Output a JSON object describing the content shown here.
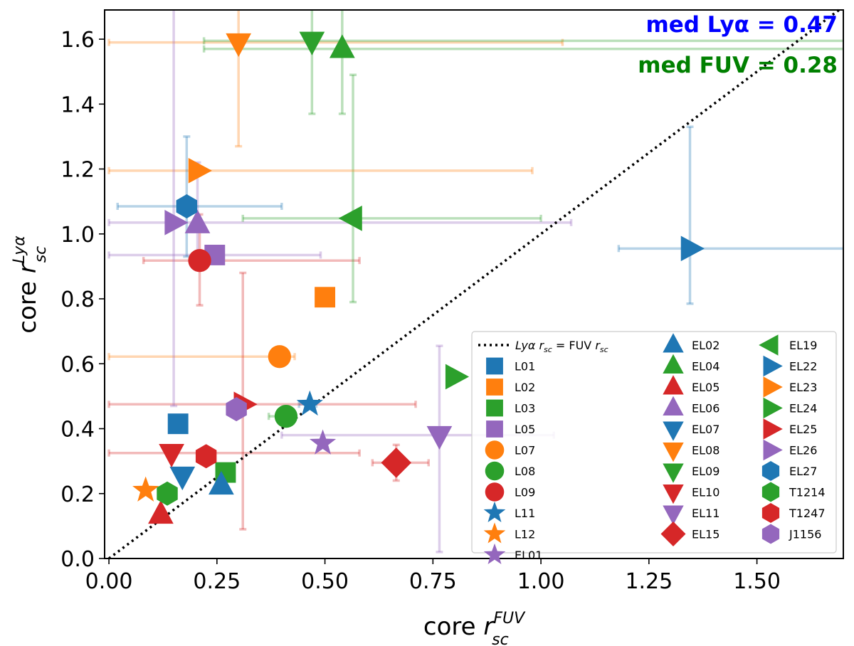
{
  "chart_data": {
    "type": "scatter",
    "title": "",
    "xlabel": {
      "base": "core ",
      "symbol": "r",
      "sub": "sc",
      "sup": "FUV"
    },
    "ylabel": {
      "base": "core ",
      "symbol": "r",
      "sub": "sc",
      "sup": "Lyα"
    },
    "xlim": [
      -0.01,
      1.7
    ],
    "ylim": [
      0.0,
      1.69
    ],
    "xticks": [
      "0.00",
      "0.25",
      "0.50",
      "0.75",
      "1.00",
      "1.25",
      "1.50"
    ],
    "xtick_values": [
      0.0,
      0.25,
      0.5,
      0.75,
      1.0,
      1.25,
      1.5
    ],
    "yticks": [
      "0.0",
      "0.2",
      "0.4",
      "0.6",
      "0.8",
      "1.0",
      "1.2",
      "1.4",
      "1.6"
    ],
    "ytick_values": [
      0.0,
      0.2,
      0.4,
      0.6,
      0.8,
      1.0,
      1.2,
      1.4,
      1.6
    ],
    "annotations": [
      {
        "text": "med Lyα  = 0.47",
        "color": "#0000ff",
        "position": "top-right"
      },
      {
        "text": "med FUV = 0.28",
        "color": "#008000",
        "position": "top-right"
      }
    ],
    "reference_line": {
      "label_parts": [
        "Lyα",
        " r",
        "sc",
        " = FUV",
        " r",
        "sc"
      ],
      "slope": 1,
      "style": "dotted"
    },
    "legend_position": "lower-right",
    "series": [
      {
        "name": "L01",
        "marker": "square",
        "color": "#1f77b4",
        "x": 0.16,
        "y": 0.415,
        "xerr": [
          0,
          0
        ],
        "yerr": [
          0,
          0
        ]
      },
      {
        "name": "L02",
        "marker": "square",
        "color": "#ff7f0e",
        "x": 0.5,
        "y": 0.805,
        "xerr": [
          0,
          0
        ],
        "yerr": [
          0,
          0
        ]
      },
      {
        "name": "L03",
        "marker": "square",
        "color": "#2ca02c",
        "x": 0.27,
        "y": 0.265,
        "xerr": [
          0,
          0
        ],
        "yerr": [
          0,
          0
        ]
      },
      {
        "name": "L05",
        "marker": "square",
        "color": "#9467bd",
        "x": 0.245,
        "y": 0.935,
        "xerr": [
          0.0,
          0.49
        ],
        "yerr": [
          0,
          0
        ]
      },
      {
        "name": "L07",
        "marker": "circle",
        "color": "#ff7f0e",
        "x": 0.395,
        "y": 0.622,
        "xerr": [
          0.0,
          0.43
        ],
        "yerr": [
          0,
          0
        ]
      },
      {
        "name": "L08",
        "marker": "circle",
        "color": "#2ca02c",
        "x": 0.41,
        "y": 0.438,
        "xerr": [
          0.37,
          0.43
        ],
        "yerr": [
          0,
          0
        ]
      },
      {
        "name": "L09",
        "marker": "circle",
        "color": "#d62728",
        "x": 0.21,
        "y": 0.918,
        "xerr": [
          0.08,
          0.58
        ],
        "yerr": [
          0.78,
          1.06
        ]
      },
      {
        "name": "L11",
        "marker": "star",
        "color": "#1f77b4",
        "x": 0.465,
        "y": 0.475,
        "xerr": [
          0.44,
          0.48
        ],
        "yerr": [
          0,
          0
        ]
      },
      {
        "name": "L12",
        "marker": "star",
        "color": "#ff7f0e",
        "x": 0.085,
        "y": 0.21,
        "xerr": [
          0,
          0
        ],
        "yerr": [
          0,
          0
        ]
      },
      {
        "name": "EL01",
        "marker": "star",
        "color": "#9467bd",
        "x": 0.495,
        "y": 0.355,
        "xerr": [
          0,
          0
        ],
        "yerr": [
          0,
          0
        ]
      },
      {
        "name": "EL02",
        "marker": "triangle-up",
        "color": "#1f77b4",
        "x": 0.26,
        "y": 0.225,
        "xerr": [
          0,
          0
        ],
        "yerr": [
          0,
          0
        ]
      },
      {
        "name": "EL04",
        "marker": "triangle-up",
        "color": "#2ca02c",
        "x": 0.54,
        "y": 1.57,
        "xerr": [
          0.22,
          1.7
        ],
        "yerr": [
          1.37,
          1.69
        ]
      },
      {
        "name": "EL05",
        "marker": "triangle-up",
        "color": "#d62728",
        "x": 0.12,
        "y": 0.135,
        "xerr": [
          0,
          0
        ],
        "yerr": [
          0,
          0
        ]
      },
      {
        "name": "EL06",
        "marker": "triangle-up",
        "color": "#9467bd",
        "x": 0.205,
        "y": 1.03,
        "xerr": [
          0,
          0
        ],
        "yerr": [
          0.89,
          1.22
        ]
      },
      {
        "name": "EL07",
        "marker": "triangle-down",
        "color": "#1f77b4",
        "x": 0.17,
        "y": 0.255,
        "xerr": [
          0,
          0
        ],
        "yerr": [
          0,
          0
        ]
      },
      {
        "name": "EL08",
        "marker": "triangle-down",
        "color": "#ff7f0e",
        "x": 0.3,
        "y": 1.59,
        "xerr": [
          0.0,
          1.05
        ],
        "yerr": [
          1.27,
          1.69
        ]
      },
      {
        "name": "EL09",
        "marker": "triangle-down",
        "color": "#2ca02c",
        "x": 0.47,
        "y": 1.595,
        "xerr": [
          0.22,
          1.7
        ],
        "yerr": [
          1.37,
          1.69
        ]
      },
      {
        "name": "EL10",
        "marker": "triangle-down",
        "color": "#d62728",
        "x": 0.145,
        "y": 0.325,
        "xerr": [
          0.0,
          0.58
        ],
        "yerr": [
          0,
          0
        ]
      },
      {
        "name": "EL11",
        "marker": "triangle-down",
        "color": "#9467bd",
        "x": 0.765,
        "y": 0.38,
        "xerr": [
          0.4,
          1.03
        ],
        "yerr": [
          0.02,
          0.655
        ]
      },
      {
        "name": "EL15",
        "marker": "diamond",
        "color": "#d62728",
        "x": 0.665,
        "y": 0.295,
        "xerr": [
          0.61,
          0.74
        ],
        "yerr": [
          0.24,
          0.35
        ]
      },
      {
        "name": "EL19",
        "marker": "triangle-left",
        "color": "#2ca02c",
        "x": 0.565,
        "y": 1.048,
        "xerr": [
          0.31,
          1.0
        ],
        "yerr": [
          0.79,
          1.49
        ]
      },
      {
        "name": "EL22",
        "marker": "triangle-right",
        "color": "#1f77b4",
        "x": 1.345,
        "y": 0.955,
        "xerr": [
          1.18,
          1.7
        ],
        "yerr": [
          0.785,
          1.33
        ]
      },
      {
        "name": "EL23",
        "marker": "triangle-right",
        "color": "#ff7f0e",
        "x": 0.205,
        "y": 1.195,
        "xerr": [
          0.0,
          0.98
        ],
        "yerr": [
          0,
          0
        ]
      },
      {
        "name": "EL24",
        "marker": "triangle-right",
        "color": "#2ca02c",
        "x": 0.8,
        "y": 0.56,
        "xerr": [
          0,
          0
        ],
        "yerr": [
          0,
          0
        ]
      },
      {
        "name": "EL25",
        "marker": "triangle-right",
        "color": "#d62728",
        "x": 0.31,
        "y": 0.475,
        "xerr": [
          0.0,
          0.71
        ],
        "yerr": [
          0.09,
          0.88
        ]
      },
      {
        "name": "EL26",
        "marker": "triangle-right",
        "color": "#9467bd",
        "x": 0.15,
        "y": 1.035,
        "xerr": [
          0.0,
          1.07
        ],
        "yerr": [
          0.47,
          1.69
        ]
      },
      {
        "name": "EL27",
        "marker": "hexagon",
        "color": "#1f77b4",
        "x": 0.18,
        "y": 1.085,
        "xerr": [
          0.02,
          0.4
        ],
        "yerr": [
          0.93,
          1.3
        ]
      },
      {
        "name": "T1214",
        "marker": "hexagon",
        "color": "#2ca02c",
        "x": 0.135,
        "y": 0.2,
        "xerr": [
          0,
          0
        ],
        "yerr": [
          0,
          0
        ]
      },
      {
        "name": "T1247",
        "marker": "hexagon",
        "color": "#d62728",
        "x": 0.225,
        "y": 0.315,
        "xerr": [
          0,
          0
        ],
        "yerr": [
          0,
          0
        ]
      },
      {
        "name": "J1156",
        "marker": "hexagon",
        "color": "#9467bd",
        "x": 0.295,
        "y": 0.46,
        "xerr": [
          0,
          0
        ],
        "yerr": [
          0,
          0
        ]
      }
    ]
  }
}
